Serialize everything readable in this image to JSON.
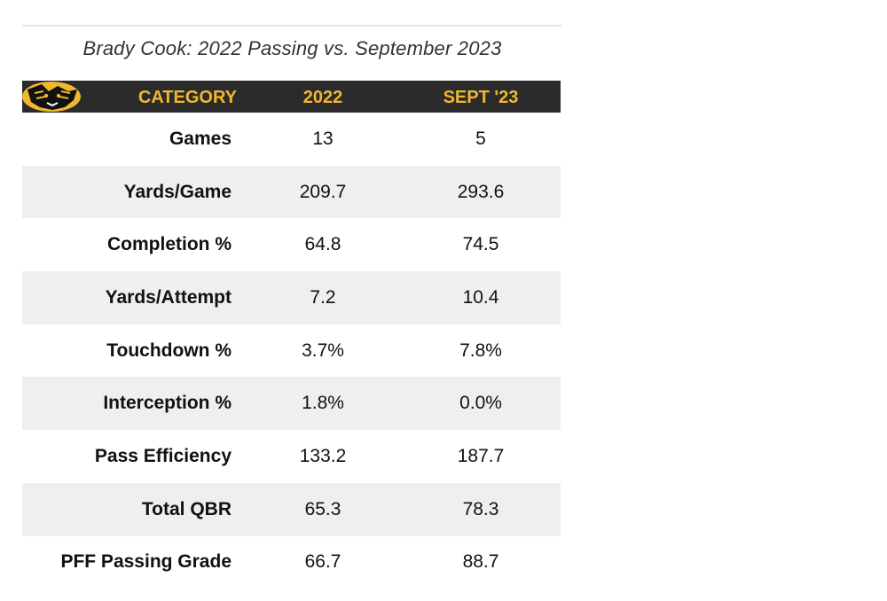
{
  "title": "Brady Cook: 2022 Passing vs. September 2023",
  "colors": {
    "header_bg": "#2b2b2b",
    "header_text": "#f1b82d",
    "row_shade": "#efefef"
  },
  "logo_icon": "tiger-head-icon",
  "chart_data": {
    "type": "table",
    "title": "Brady Cook: 2022 Passing vs. September 2023",
    "columns": [
      "CATEGORY",
      "2022",
      "SEPT '23"
    ],
    "rows": [
      {
        "category": "Games",
        "v2022": "13",
        "sept23": "5"
      },
      {
        "category": "Yards/Game",
        "v2022": "209.7",
        "sept23": "293.6"
      },
      {
        "category": "Completion %",
        "v2022": "64.8",
        "sept23": "74.5"
      },
      {
        "category": "Yards/Attempt",
        "v2022": "7.2",
        "sept23": "10.4"
      },
      {
        "category": "Touchdown %",
        "v2022": "3.7%",
        "sept23": "7.8%"
      },
      {
        "category": "Interception %",
        "v2022": "1.8%",
        "sept23": "0.0%"
      },
      {
        "category": "Pass Efficiency",
        "v2022": "133.2",
        "sept23": "187.7"
      },
      {
        "category": "Total QBR",
        "v2022": "65.3",
        "sept23": "78.3"
      },
      {
        "category": "PFF Passing Grade",
        "v2022": "66.7",
        "sept23": "88.7"
      }
    ]
  }
}
